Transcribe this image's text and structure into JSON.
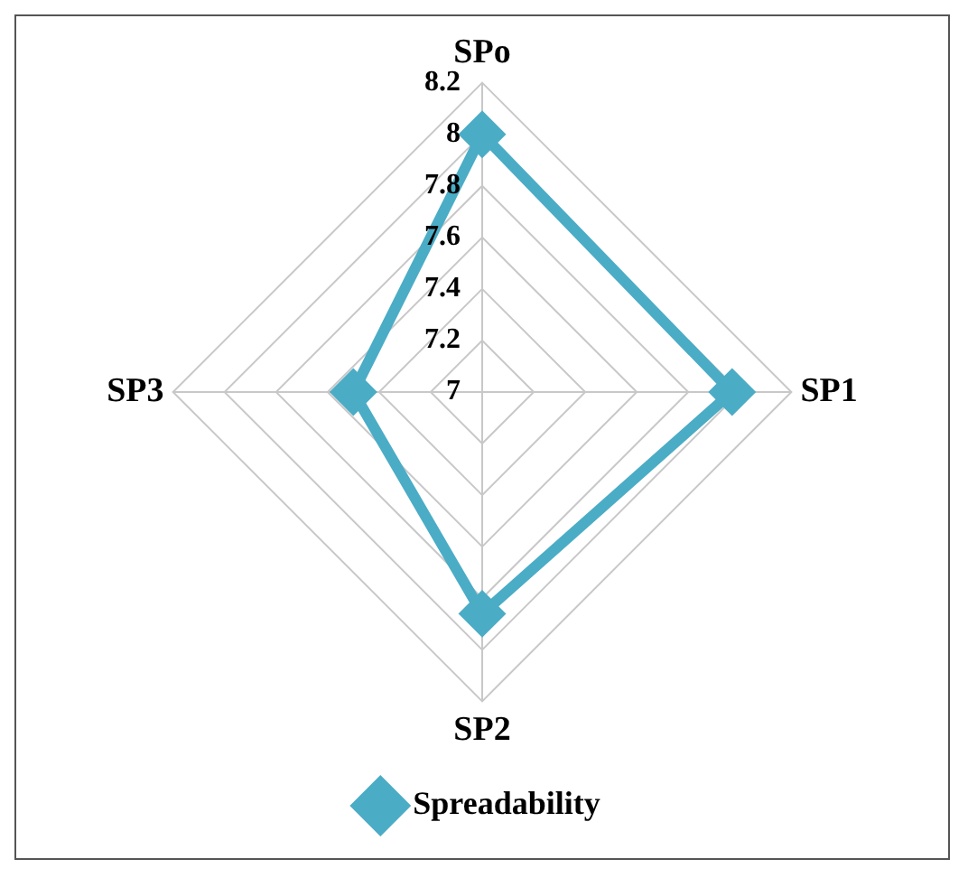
{
  "chart_data": {
    "type": "radar",
    "categories": [
      "SPo",
      "SP1",
      "SP2",
      "SP3"
    ],
    "series": [
      {
        "name": "Spreadability",
        "color": "#4bacc6",
        "values": [
          8.0,
          7.97,
          7.86,
          7.5
        ]
      }
    ],
    "ylim": [
      7,
      8.2
    ],
    "yticks": [
      7,
      7.2,
      7.4,
      7.6,
      7.8,
      8,
      8.2
    ],
    "grid": true,
    "legend": "bottom",
    "marker": "diamond",
    "line_style": "solid"
  }
}
